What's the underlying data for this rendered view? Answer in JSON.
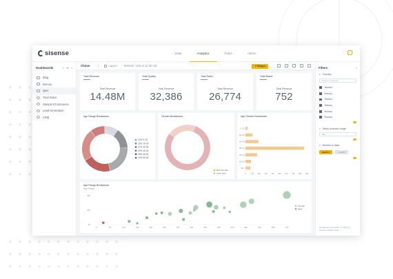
{
  "app": {
    "brand": "sisense"
  },
  "nav": {
    "tabs": [
      "Data",
      "Analytics",
      "Pulse",
      "Admin"
    ],
    "active_index": 1
  },
  "sidebar": {
    "title": "Dashboards",
    "items": [
      {
        "label": "Blog",
        "type": "folder"
      },
      {
        "label": "Demos",
        "type": "folder"
      },
      {
        "label": "Q&A",
        "type": "folder",
        "active": true
      },
      {
        "label": "Total Sales",
        "type": "dashboard"
      },
      {
        "label": "Sample ECommerce",
        "type": "dashboard"
      },
      {
        "label": "Lead Generation",
        "type": "dashboard"
      },
      {
        "label": "CRM",
        "type": "dashboard"
      }
    ]
  },
  "toolbar": {
    "title": "Chime",
    "edit_label": "Layout",
    "refresh_label": "Refresh: 12/6 at 12:30 AM",
    "widget_label": "+ Widget"
  },
  "kpis": [
    {
      "title": "Total Revenue",
      "subtitle": "Total Revenue",
      "value": "14.48M"
    },
    {
      "title": "Total Quality",
      "subtitle": "Total Revenue",
      "value": "32,386"
    },
    {
      "title": "Total Sales",
      "subtitle": "Total Revenue",
      "value": "26,774"
    },
    {
      "title": "Total Brand",
      "subtitle": "Total Revenue",
      "value": "752"
    }
  ],
  "colors": {
    "accent": "#f2b600",
    "donut": [
      "#d7dbe0",
      "#8f9296",
      "#a8a9ab",
      "#c0605c",
      "#d88c88",
      "#cf7d7a"
    ],
    "gender": [
      "#e3b3b3",
      "#f1d0c7"
    ],
    "bars": "#f6c98d",
    "scatter_female": "#a8d2b0",
    "scatter_male": "#7cb587",
    "scatter_accent": "#cf5454"
  },
  "charts": {
    "age_donut": {
      "title": "Age Range Breakdown",
      "legend": [
        "12% 0-18",
        "18% 19-24",
        "27% 25-34",
        "25% 35-44",
        "28% 45-54",
        "13% 55-64"
      ]
    },
    "gender_donut": {
      "title": "Gender Breakdown",
      "legend": [
        "80% Female",
        "Less more"
      ]
    },
    "age_gender_bars": {
      "title": "Age Gender Breakdown"
    },
    "scatter": {
      "title": "Age Range Breakdown",
      "subtitle": "Age Range",
      "legend": [
        "Female",
        "Male"
      ]
    }
  },
  "chart_data": [
    {
      "type": "pie",
      "title": "Age Range Breakdown",
      "categories": [
        "0-18",
        "19-24",
        "25-34",
        "35-44",
        "45-54",
        "55-64"
      ],
      "values": [
        12,
        18,
        27,
        25,
        28,
        13
      ],
      "legend_position": "right"
    },
    {
      "type": "pie",
      "title": "Gender Breakdown",
      "categories": [
        "Female",
        "Male"
      ],
      "values": [
        80,
        20
      ],
      "legend_position": "bottom"
    },
    {
      "type": "bar",
      "orientation": "horizontal",
      "title": "Age Gender Breakdown",
      "categories": [
        "0-18",
        "19-24",
        "25-34",
        "35-44",
        "45-54",
        "55-64",
        "65+"
      ],
      "values": [
        0.3,
        1.0,
        1.9,
        8.6,
        1.7,
        0.8,
        0.7
      ],
      "x_ticks": [
        "0",
        "1M",
        "2M",
        "3M",
        "4M",
        "5M",
        "6M",
        "7M",
        "8M",
        "9M"
      ],
      "xlim": [
        0,
        9
      ]
    },
    {
      "type": "scatter",
      "title": "Age Range Breakdown",
      "x_ticks": [
        "0",
        "5K",
        "10K",
        "15K",
        "20K",
        "25K",
        "30K",
        "35K",
        "40K",
        "45K",
        "50K",
        "55K",
        "60K",
        "65K",
        "70K"
      ],
      "y_ticks": [
        "20K",
        "10K",
        "5K"
      ],
      "xlim": [
        0,
        70
      ],
      "ylim": [
        5,
        20
      ],
      "legend_position": "right",
      "points": [
        {
          "x": 2.5,
          "y": 5.9,
          "r": 0.9,
          "series": 2
        },
        {
          "x": 12,
          "y": 6.5,
          "r": 1.0,
          "series": 1
        },
        {
          "x": 15,
          "y": 5.6,
          "r": 0.8,
          "series": 1
        },
        {
          "x": 18.5,
          "y": 8.2,
          "r": 1.0,
          "series": 1
        },
        {
          "x": 22,
          "y": 10.2,
          "r": 0.9,
          "series": 1
        },
        {
          "x": 24,
          "y": 10.6,
          "r": 1.0,
          "series": 1
        },
        {
          "x": 27,
          "y": 10.1,
          "r": 1.4,
          "series": 0
        },
        {
          "x": 31,
          "y": 11.5,
          "r": 1.5,
          "series": 1
        },
        {
          "x": 32,
          "y": 7.4,
          "r": 1.0,
          "series": 1
        },
        {
          "x": 34.5,
          "y": 10.5,
          "r": 1.2,
          "series": 0
        },
        {
          "x": 36.5,
          "y": 13.1,
          "r": 1.8,
          "series": 0
        },
        {
          "x": 36,
          "y": 11.9,
          "r": 1.1,
          "series": 0
        },
        {
          "x": 41.5,
          "y": 14.5,
          "r": 2.2,
          "series": 1
        },
        {
          "x": 44,
          "y": 13.2,
          "r": 1.7,
          "series": 0
        },
        {
          "x": 43,
          "y": 11.2,
          "r": 1.0,
          "series": 1
        },
        {
          "x": 47,
          "y": 12.9,
          "r": 1.0,
          "series": 0
        },
        {
          "x": 54,
          "y": 14.4,
          "r": 2.4,
          "series": 0
        },
        {
          "x": 49,
          "y": 11.0,
          "r": 0.8,
          "series": 1
        },
        {
          "x": 57,
          "y": 16.0,
          "r": 2.0,
          "series": 0
        },
        {
          "x": 70,
          "y": 19.0,
          "r": 2.8,
          "series": 0
        }
      ]
    }
  ],
  "filters": {
    "title": "Filters",
    "country": {
      "label": "Country",
      "search_placeholder": "Search countries...",
      "options": [
        "Mexico",
        "Mexico",
        "Mexico",
        "Mexico",
        "Mexico",
        "Mexico"
      ]
    },
    "sales_revenue": {
      "label": "Sales revenue range",
      "value": "Min"
    },
    "date": {
      "label": "Months in data",
      "buttons": [
        "SELECT",
        "CLEAR"
      ]
    },
    "footer": "Update an cross-filter for filtering between dashboards"
  }
}
